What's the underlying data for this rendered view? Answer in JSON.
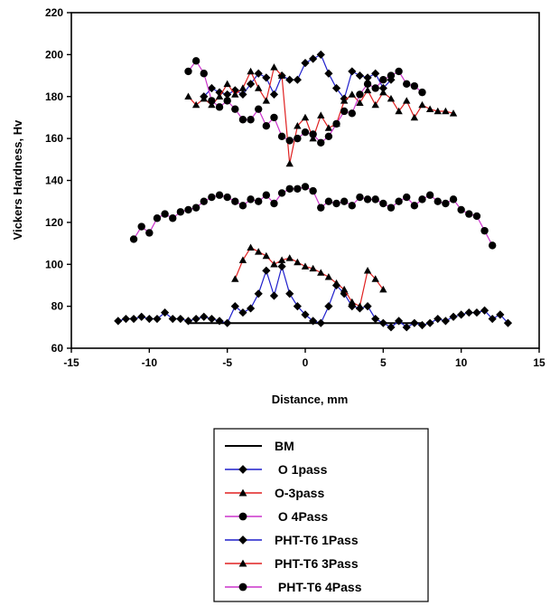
{
  "chart_data": {
    "type": "line",
    "title": "",
    "xlabel": "Distance, mm",
    "ylabel": "Vickers Hardness, Hv",
    "xlim": [
      -15,
      15
    ],
    "ylim": [
      60,
      220
    ],
    "xticks": [
      -15,
      -10,
      -5,
      0,
      5,
      10,
      15
    ],
    "yticks": [
      60,
      80,
      100,
      120,
      140,
      160,
      180,
      200,
      220
    ],
    "grid": false,
    "legend_position": "below-plot",
    "series": [
      {
        "name": "BM",
        "line_color": "#000000",
        "marker": "none",
        "marker_color": "#000000",
        "x": [
          -7.5,
          7.5
        ],
        "y": [
          72,
          72
        ]
      },
      {
        "name": " O 1pass",
        "line_color": "#1f1fcc",
        "marker": "diamond",
        "marker_color": "#000000",
        "x": [
          -6.5,
          -6.0,
          -5.5,
          -5.0,
          -4.5,
          -4.0,
          -3.5,
          -3.0,
          -2.5,
          -2.0,
          -1.5,
          -1.0,
          -0.5,
          0.0,
          0.5,
          1.0,
          1.5,
          2.0,
          2.5,
          3.0,
          3.5,
          4.0,
          4.5,
          5.0,
          5.5
        ],
        "y": [
          180,
          184,
          182,
          181,
          183,
          181,
          186,
          191,
          189,
          181,
          190,
          188,
          188,
          196,
          198,
          200,
          191,
          184,
          179,
          192,
          190,
          189,
          191,
          184,
          188
        ]
      },
      {
        "name": "O-3pass",
        "line_color": "#e02020",
        "marker": "triangle",
        "marker_color": "#000000",
        "x": [
          -7.5,
          -7.0,
          -6.5,
          -6.0,
          -5.5,
          -5.0,
          -4.5,
          -4.0,
          -3.5,
          -3.0,
          -2.5,
          -2.0,
          -1.5,
          -1.0,
          -0.5,
          0.0,
          0.5,
          1.0,
          1.5,
          2.0,
          2.5,
          3.0,
          3.5,
          4.0,
          4.5,
          5.0,
          5.5,
          6.0,
          6.5,
          7.0,
          7.5,
          8.0,
          8.5,
          9.0,
          9.5
        ],
        "y": [
          180,
          176,
          179,
          176,
          180,
          186,
          181,
          184,
          192,
          184,
          178,
          194,
          190,
          148,
          166,
          170,
          160,
          171,
          165,
          167,
          178,
          181,
          177,
          183,
          176,
          182,
          179,
          173,
          178,
          170,
          176,
          174,
          173,
          173,
          172
        ]
      },
      {
        "name": " O 4Pass",
        "line_color": "#cc33cc",
        "marker": "circle",
        "marker_color": "#000000",
        "x": [
          -7.5,
          -7.0,
          -6.5,
          -6.0,
          -5.5,
          -5.0,
          -4.5,
          -4.0,
          -3.5,
          -3.0,
          -2.5,
          -2.0,
          -1.5,
          -1.0,
          -0.5,
          0.0,
          0.5,
          1.0,
          1.5,
          2.0,
          2.5,
          3.0,
          3.5,
          4.0,
          4.5,
          5.0,
          5.5,
          6.0,
          6.5,
          7.0,
          7.5
        ],
        "y": [
          192,
          197,
          191,
          178,
          175,
          178,
          174,
          169,
          169,
          174,
          166,
          170,
          161,
          159,
          160,
          163,
          162,
          158,
          161,
          167,
          173,
          172,
          181,
          186,
          184,
          188,
          190,
          192,
          186,
          185,
          182
        ]
      },
      {
        "name": "PHT-T6 1Pass",
        "line_color": "#1f1fcc",
        "marker": "diamond",
        "marker_color": "#000000",
        "x": [
          -12.0,
          -11.5,
          -11.0,
          -10.5,
          -10.0,
          -9.5,
          -9.0,
          -8.5,
          -8.0,
          -7.5,
          -7.0,
          -6.5,
          -6.0,
          -5.5,
          -5.0,
          -4.5,
          -4.0,
          -3.5,
          -3.0,
          -2.5,
          -2.0,
          -1.5,
          -1.0,
          -0.5,
          0.0,
          0.5,
          1.0,
          1.5,
          2.0,
          2.5,
          3.0,
          3.5,
          4.0,
          4.5,
          5.0,
          5.5,
          6.0,
          6.5,
          7.0,
          7.5,
          8.0,
          8.5,
          9.0,
          9.5,
          10.0,
          10.5,
          11.0,
          11.5,
          12.0,
          12.5,
          13.0
        ],
        "y": [
          73,
          74,
          74,
          75,
          74,
          74,
          77,
          74,
          74,
          73,
          74,
          75,
          74,
          73,
          72,
          80,
          77,
          79,
          86,
          97,
          85,
          99,
          86,
          80,
          76,
          73,
          72,
          80,
          90,
          86,
          80,
          79,
          80,
          74,
          72,
          70,
          73,
          70,
          72,
          71,
          72,
          74,
          73,
          75,
          76,
          77,
          77,
          78,
          74,
          76,
          72
        ]
      },
      {
        "name": "PHT-T6 3Pass",
        "line_color": "#e02020",
        "marker": "triangle",
        "marker_color": "#000000",
        "x": [
          -4.5,
          -4.0,
          -3.5,
          -3.0,
          -2.5,
          -2.0,
          -1.5,
          -1.0,
          -0.5,
          0.0,
          0.5,
          1.0,
          1.5,
          2.0,
          2.5,
          3.0,
          3.5,
          4.0,
          4.5,
          5.0
        ],
        "y": [
          93,
          102,
          108,
          106,
          104,
          100,
          102,
          103,
          101,
          99,
          98,
          96,
          94,
          91,
          88,
          82,
          80,
          97,
          93,
          88
        ]
      },
      {
        "name": " PHT-T6 4Pass",
        "line_color": "#cc33cc",
        "marker": "circle",
        "marker_color": "#000000",
        "x": [
          -11.0,
          -10.5,
          -10.0,
          -9.5,
          -9.0,
          -8.5,
          -8.0,
          -7.5,
          -7.0,
          -6.5,
          -6.0,
          -5.5,
          -5.0,
          -4.5,
          -4.0,
          -3.5,
          -3.0,
          -2.5,
          -2.0,
          -1.5,
          -1.0,
          -0.5,
          0.0,
          0.5,
          1.0,
          1.5,
          2.0,
          2.5,
          3.0,
          3.5,
          4.0,
          4.5,
          5.0,
          5.5,
          6.0,
          6.5,
          7.0,
          7.5,
          8.0,
          8.5,
          9.0,
          9.5,
          10.0,
          10.5,
          11.0,
          11.5,
          12.0
        ],
        "y": [
          112,
          118,
          115,
          122,
          124,
          122,
          125,
          126,
          127,
          130,
          132,
          133,
          132,
          130,
          128,
          131,
          130,
          133,
          129,
          134,
          136,
          136,
          137,
          135,
          127,
          130,
          129,
          130,
          128,
          132,
          131,
          131,
          129,
          127,
          130,
          132,
          128,
          131,
          133,
          130,
          129,
          131,
          126,
          124,
          123,
          116,
          109
        ]
      }
    ]
  }
}
